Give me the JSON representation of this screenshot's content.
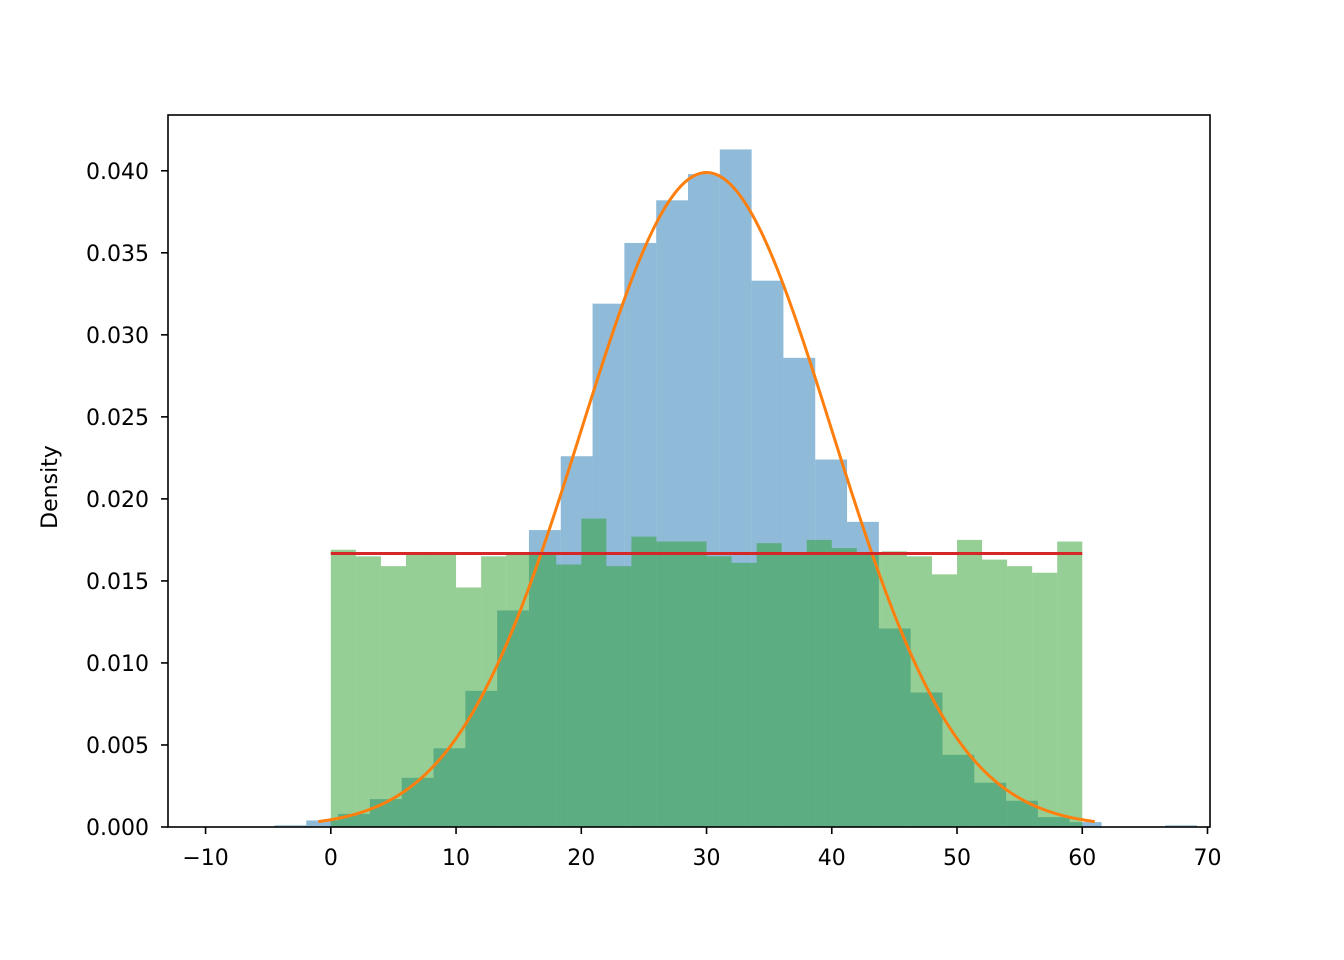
{
  "chart_data": {
    "type": "bar",
    "title": "",
    "xlabel": "",
    "ylabel": "Density",
    "xlim": [
      -13,
      70.2
    ],
    "ylim": [
      0,
      0.0434
    ],
    "xticks": [
      -10,
      0,
      10,
      20,
      30,
      40,
      50,
      60,
      70
    ],
    "xtick_labels": [
      "−10",
      "0",
      "10",
      "20",
      "30",
      "40",
      "50",
      "60",
      "70"
    ],
    "yticks": [
      0.0,
      0.005,
      0.01,
      0.015,
      0.02,
      0.025,
      0.03,
      0.035,
      0.04
    ],
    "ytick_labels": [
      "0.000",
      "0.005",
      "0.010",
      "0.015",
      "0.020",
      "0.025",
      "0.030",
      "0.035",
      "0.040"
    ],
    "grid": false,
    "colors": {
      "normal_hist": "#1f77b4",
      "uniform_hist": "#2ca02c",
      "normal_pdf": "#ff7f0e",
      "uniform_pdf": "#d62728",
      "hist_alpha": 0.5
    },
    "histograms": [
      {
        "kind": "normal-sample",
        "bin_start": -4.5,
        "bin_width": 2.54,
        "values": [
          0.0001,
          0.0004,
          0.0008,
          0.0017,
          0.003,
          0.0048,
          0.0083,
          0.0132,
          0.0181,
          0.0226,
          0.0319,
          0.0356,
          0.0382,
          0.0398,
          0.0413,
          0.0333,
          0.0286,
          0.0224,
          0.0186,
          0.0121,
          0.0082,
          0.0044,
          0.0027,
          0.0016,
          0.0006,
          0.0003,
          0.0,
          0.0,
          0.0001
        ]
      },
      {
        "kind": "uniform-sample",
        "bin_start": 0.0,
        "bin_width": 2.0,
        "values": [
          0.0169,
          0.0165,
          0.0159,
          0.0166,
          0.0166,
          0.0146,
          0.0165,
          0.0167,
          0.0166,
          0.016,
          0.0188,
          0.0159,
          0.0177,
          0.0174,
          0.0174,
          0.0165,
          0.0161,
          0.0173,
          0.0166,
          0.0175,
          0.017,
          0.0166,
          0.0168,
          0.0165,
          0.0154,
          0.0175,
          0.0163,
          0.0159,
          0.0155,
          0.0174
        ]
      }
    ],
    "lines": [
      {
        "kind": "normal-pdf",
        "mean": 30,
        "std": 10,
        "x_range": [
          -1,
          61
        ]
      },
      {
        "kind": "uniform-pdf",
        "x": [
          0,
          60
        ],
        "y": [
          0.01667,
          0.01667
        ]
      }
    ]
  }
}
